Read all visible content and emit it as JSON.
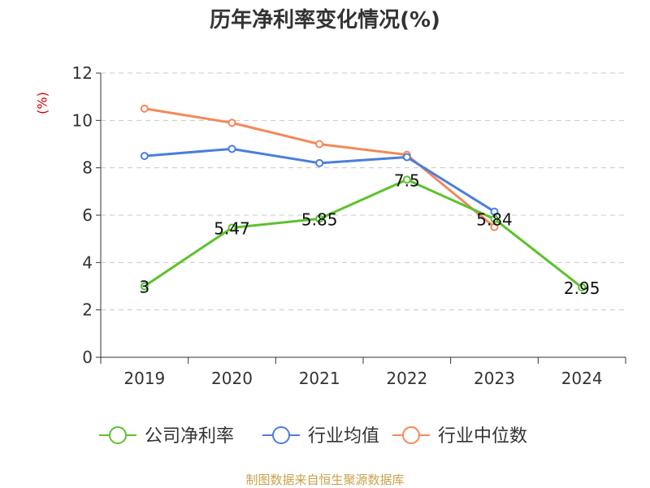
{
  "chart_data": {
    "type": "line",
    "title": "历年净利率变化情况(%)",
    "ylabel": "(%)",
    "xlabel": "",
    "categories": [
      "2019",
      "2020",
      "2021",
      "2022",
      "2023",
      "2024"
    ],
    "ylim": [
      0,
      12
    ],
    "yticks": [
      0,
      2,
      4,
      6,
      8,
      10,
      12
    ],
    "grid": true,
    "legend_position": "bottom",
    "series": [
      {
        "name": "公司净利率",
        "color": "#5cc22e",
        "values": [
          3,
          5.47,
          5.85,
          7.5,
          5.84,
          2.95
        ],
        "labels": [
          "3",
          "5.47",
          "5.85",
          "7.5",
          "5.84",
          "2.95"
        ]
      },
      {
        "name": "行业均值",
        "color": "#4a7fdc",
        "values": [
          8.5,
          8.8,
          8.2,
          8.45,
          6.15,
          null
        ]
      },
      {
        "name": "行业中位数",
        "color": "#f4895a",
        "values": [
          10.5,
          9.9,
          9.0,
          8.55,
          5.5,
          null
        ]
      }
    ]
  },
  "source": "制图数据来自恒生聚源数据库"
}
